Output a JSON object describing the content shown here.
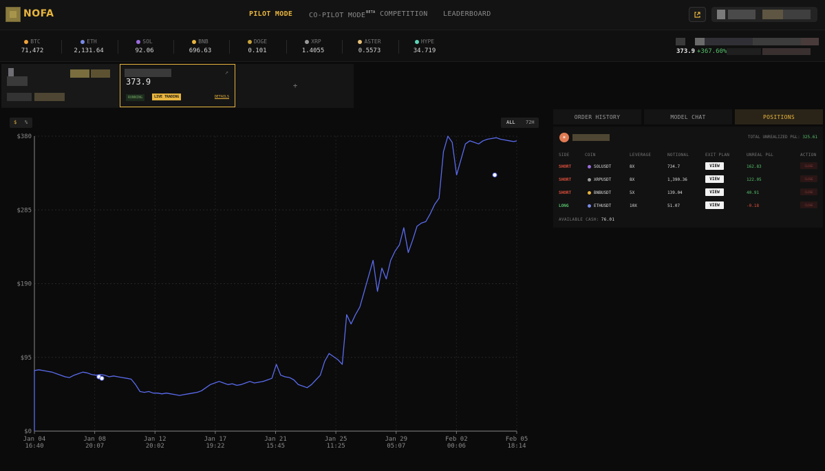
{
  "brand": {
    "name": "NOFA"
  },
  "nav": {
    "pilot": "PILOT MODE",
    "copilot": "CO-PILOT MODE",
    "copilot_badge": "BETA",
    "competition": "COMPETITION",
    "leaderboard": "LEADERBOARD"
  },
  "tickers": [
    {
      "symbol": "BTC",
      "price": "71,472",
      "color": "#f2a33a"
    },
    {
      "symbol": "ETH",
      "price": "2,131.64",
      "color": "#7a8ae8"
    },
    {
      "symbol": "SOL",
      "price": "92.06",
      "color": "#9b6de0"
    },
    {
      "symbol": "BNB",
      "price": "696.63",
      "color": "#e8b53e"
    },
    {
      "symbol": "DOGE",
      "price": "0.101",
      "color": "#c9a43a"
    },
    {
      "symbol": "XRP",
      "price": "1.4055",
      "color": "#9a9a9a"
    },
    {
      "symbol": "ASTER",
      "price": "0.5573",
      "color": "#e8c078"
    },
    {
      "symbol": "HYPE",
      "price": "34.719",
      "color": "#5fd4b8"
    }
  ],
  "account": {
    "value": "373.9",
    "change": "+367.60%"
  },
  "cards": {
    "active_value": "373.9",
    "running": "RUNNING",
    "live": "LIVE TRADING",
    "details": "DETAILS",
    "add": "+"
  },
  "chart_controls": {
    "dollar": "$",
    "percent": "%",
    "all": "ALL",
    "h72": "72H"
  },
  "chart_data": {
    "type": "line",
    "ylim": [
      0,
      380
    ],
    "yticks": [
      "$380",
      "$285",
      "$190",
      "$95",
      "$0"
    ],
    "xticks": [
      {
        "d": "Jan 04",
        "t": "16:40"
      },
      {
        "d": "Jan 08",
        "t": "20:07"
      },
      {
        "d": "Jan 12",
        "t": "20:02"
      },
      {
        "d": "Jan 17",
        "t": "19:22"
      },
      {
        "d": "Jan 21",
        "t": "15:45"
      },
      {
        "d": "Jan 25",
        "t": "11:25"
      },
      {
        "d": "Jan 29",
        "t": "05:07"
      },
      {
        "d": "Feb 02",
        "t": "00:06"
      },
      {
        "d": "Feb 05",
        "t": "18:14"
      }
    ],
    "series": [
      {
        "color": "#5b6cf0",
        "x": [
          0,
          0.3,
          0.6,
          0.9,
          1.2,
          1.5,
          1.8,
          2.1,
          2.4,
          2.7,
          3.0,
          3.3,
          3.6,
          3.9,
          4.2,
          4.5,
          4.8,
          5.1,
          5.4,
          5.7,
          6.0,
          6.3,
          6.6,
          6.9,
          7.2,
          7.5,
          7.8,
          8.1,
          8.4,
          8.7,
          9.0,
          9.3,
          9.6,
          9.9,
          10.2,
          10.5,
          10.8,
          11.1,
          11.4,
          11.7,
          12.0,
          12.3,
          12.6,
          12.9,
          13.2,
          13.5,
          13.8,
          14.1,
          14.4,
          14.7,
          15.0,
          15.3,
          15.6,
          15.9,
          16.2,
          16.5,
          16.8,
          17.1,
          17.4,
          17.7,
          18.0,
          18.3,
          18.6,
          18.9,
          19.2,
          19.5,
          19.8,
          20.1,
          20.4,
          20.7,
          21.0,
          21.3,
          21.6,
          21.9,
          22.2,
          22.5,
          22.8,
          23.1,
          23.4,
          23.7,
          24.0,
          24.3,
          24.6,
          24.9,
          25.2,
          25.5,
          25.8,
          26.1,
          26.4,
          26.7,
          27.0,
          27.3,
          27.6,
          27.9,
          28.2,
          28.5,
          28.8,
          29.1,
          29.4,
          29.7,
          30.0,
          30.3,
          30.6,
          30.9,
          31.2,
          31.5,
          31.8,
          32.1,
          32.4,
          32.7,
          32.9
        ],
        "values": [
          78,
          79,
          78,
          77,
          76,
          74,
          72,
          70,
          69,
          72,
          74,
          76,
          75,
          73,
          72,
          73,
          72,
          70,
          71,
          70,
          69,
          68,
          67,
          60,
          51,
          50,
          51,
          49,
          49,
          48,
          49,
          48,
          47,
          46,
          47,
          48,
          49,
          50,
          52,
          56,
          60,
          62,
          64,
          62,
          60,
          61,
          59,
          60,
          62,
          64,
          62,
          63,
          64,
          66,
          68,
          86,
          72,
          70,
          69,
          66,
          60,
          58,
          56,
          60,
          66,
          72,
          90,
          100,
          96,
          92,
          86,
          150,
          138,
          150,
          160,
          180,
          200,
          220,
          180,
          210,
          196,
          220,
          232,
          240,
          262,
          230,
          246,
          264,
          268,
          270,
          280,
          292,
          300,
          360,
          380,
          372,
          330,
          350,
          370,
          374,
          372,
          370,
          374,
          376,
          377,
          378,
          376,
          375,
          374,
          373,
          373.9
        ]
      }
    ],
    "markers": [
      {
        "x": 4.4,
        "y": 70
      },
      {
        "x": 4.6,
        "y": 68
      },
      {
        "x": 31.4,
        "y": 330
      }
    ]
  },
  "panel": {
    "tabs": [
      "ORDER HISTORY",
      "MODEL CHAT",
      "POSITIONS"
    ],
    "pnl_label": "TOTAL UNREALIZED P&L:",
    "pnl_value": "325.61",
    "headers": [
      "SIDE",
      "COIN",
      "LEVERAGE",
      "NOTIONAL",
      "EXIT PLAN",
      "UNREAL P&L",
      "ACTION"
    ],
    "rows": [
      {
        "side": "SHORT",
        "coin": "SOLUSDT",
        "coin_color": "#9b6de0",
        "leverage": "8X",
        "notional": "734.7",
        "exit": "VIEW",
        "pnl": "162.83",
        "action": "CLOSE"
      },
      {
        "side": "SHORT",
        "coin": "XRPUSDT",
        "coin_color": "#9a9a9a",
        "leverage": "8X",
        "notional": "1,390.36",
        "exit": "VIEW",
        "pnl": "122.05",
        "action": "CLOSE"
      },
      {
        "side": "SHORT",
        "coin": "BNBUSDT",
        "coin_color": "#e8b53e",
        "leverage": "5X",
        "notional": "139.04",
        "exit": "VIEW",
        "pnl": "40.91",
        "action": "CLOSE"
      },
      {
        "side": "LONG",
        "coin": "ETHUSDT",
        "coin_color": "#7a8ae8",
        "leverage": "10X",
        "notional": "51.07",
        "exit": "VIEW",
        "pnl": "-0.18",
        "action": "CLOSE"
      }
    ],
    "cash_label": "AVAILABLE CASH:",
    "cash_value": "76.01"
  }
}
